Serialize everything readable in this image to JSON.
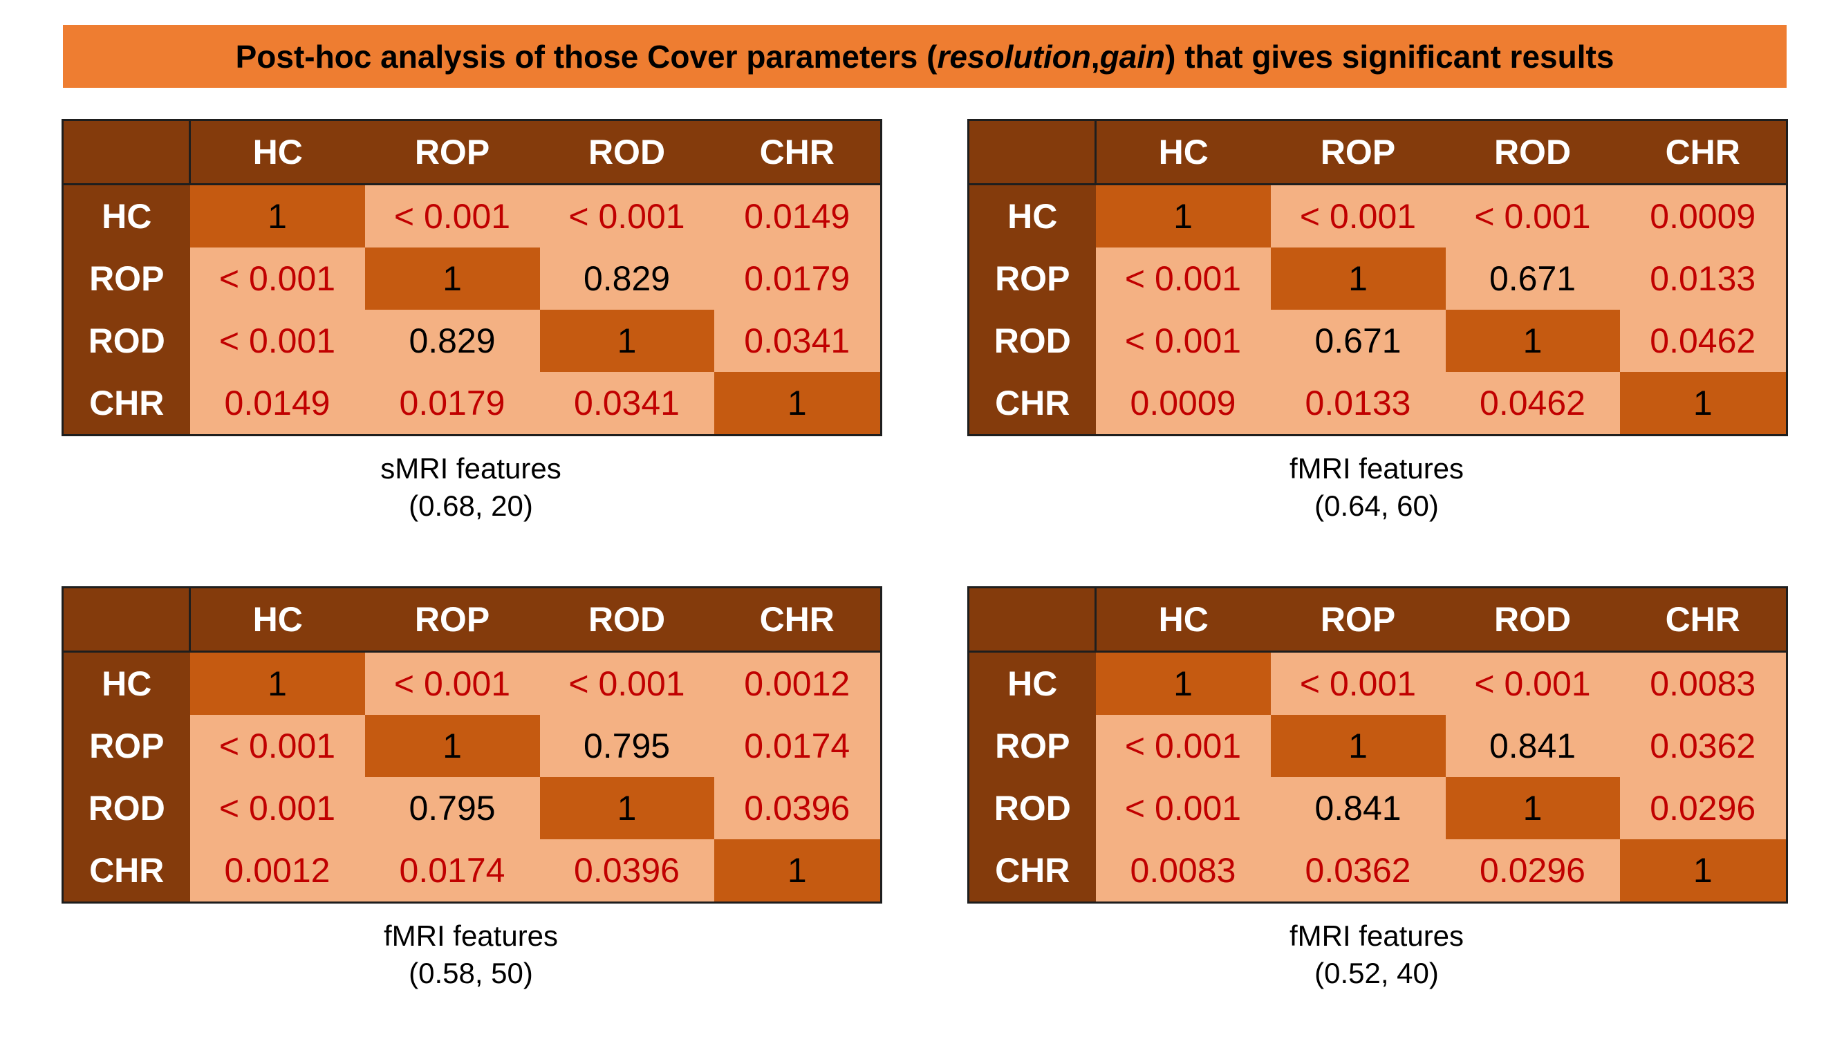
{
  "banner": {
    "prefix": "Post-hoc analysis of those Cover parameters (",
    "param1": "resolution",
    "sep": ", ",
    "param2": "gain",
    "suffix": ") that gives significant results"
  },
  "headers": [
    "HC",
    "ROP",
    "ROD",
    "CHR"
  ],
  "panels": {
    "tl": {
      "rows": [
        [
          "1",
          "< 0.001",
          "< 0.001",
          "0.0149"
        ],
        [
          "< 0.001",
          "1",
          "0.829",
          "0.0179"
        ],
        [
          "< 0.001",
          "0.829",
          "1",
          "0.0341"
        ],
        [
          "0.0149",
          "0.0179",
          "0.0341",
          "1"
        ]
      ],
      "caption_line1": "sMRI features",
      "caption_line2": "(0.68, 20)"
    },
    "tr": {
      "rows": [
        [
          "1",
          "< 0.001",
          "< 0.001",
          "0.0009"
        ],
        [
          "< 0.001",
          "1",
          "0.671",
          "0.0133"
        ],
        [
          "< 0.001",
          "0.671",
          "1",
          "0.0462"
        ],
        [
          "0.0009",
          "0.0133",
          "0.0462",
          "1"
        ]
      ],
      "caption_line1": "fMRI features",
      "caption_line2": "(0.64, 60)"
    },
    "bl": {
      "rows": [
        [
          "1",
          "< 0.001",
          "< 0.001",
          "0.0012"
        ],
        [
          "< 0.001",
          "1",
          "0.795",
          "0.0174"
        ],
        [
          "< 0.001",
          "0.795",
          "1",
          "0.0396"
        ],
        [
          "0.0012",
          "0.0174",
          "0.0396",
          "1"
        ]
      ],
      "caption_line1": "fMRI features",
      "caption_line2": "(0.58, 50)"
    },
    "br": {
      "rows": [
        [
          "1",
          "< 0.001",
          "< 0.001",
          "0.0083"
        ],
        [
          "< 0.001",
          "1",
          "0.841",
          "0.0362"
        ],
        [
          "< 0.001",
          "0.841",
          "1",
          "0.0296"
        ],
        [
          "0.0083",
          "0.0362",
          "0.0296",
          "1"
        ]
      ],
      "caption_line1": "fMRI features",
      "caption_line2": "(0.52, 40)"
    }
  },
  "colors": {
    "banner": "#ee7d31",
    "header": "#843b0c",
    "cell": "#f4b183",
    "diagonal": "#c55a11",
    "significant_text": "#c00000",
    "non_significant_text": "#000000"
  }
}
